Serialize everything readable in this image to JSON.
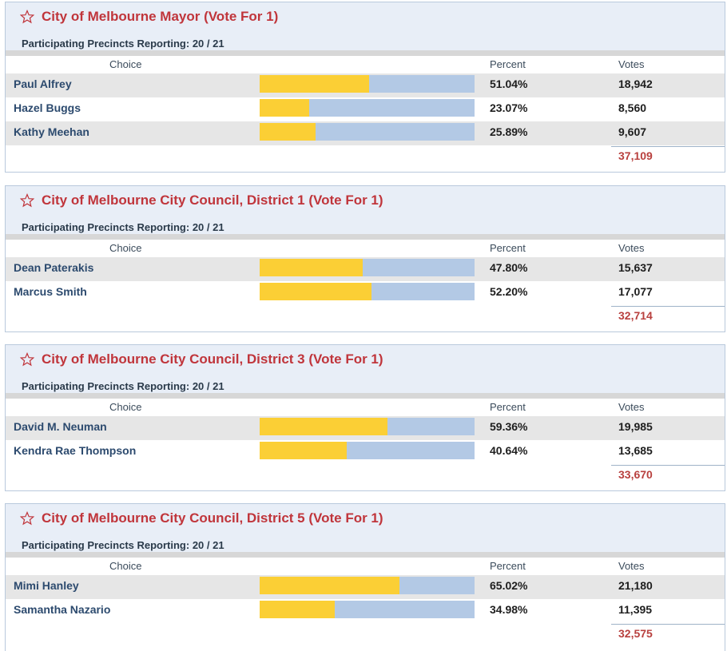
{
  "columns": {
    "choice": "Choice",
    "percent": "Percent",
    "votes": "Votes"
  },
  "colors": {
    "title": "#c0353b",
    "bar_fill": "#fbcf35",
    "bar_track": "#b3c9e5",
    "total": "#b8403e"
  },
  "races": [
    {
      "title": "City of Melbourne Mayor (Vote For 1)",
      "precincts": "Participating Precincts Reporting: 20 / 21",
      "candidates": [
        {
          "name": "Paul Alfrey",
          "percent": "51.04%",
          "votes": "18,942",
          "share": 0.5104
        },
        {
          "name": "Hazel Buggs",
          "percent": "23.07%",
          "votes": "8,560",
          "share": 0.2307
        },
        {
          "name": "Kathy Meehan",
          "percent": "25.89%",
          "votes": "9,607",
          "share": 0.2589
        }
      ],
      "total": "37,109"
    },
    {
      "title": "City of Melbourne City Council, District 1 (Vote For 1)",
      "precincts": "Participating Precincts Reporting: 20 / 21",
      "candidates": [
        {
          "name": "Dean Paterakis",
          "percent": "47.80%",
          "votes": "15,637",
          "share": 0.478
        },
        {
          "name": "Marcus Smith",
          "percent": "52.20%",
          "votes": "17,077",
          "share": 0.522
        }
      ],
      "total": "32,714"
    },
    {
      "title": "City of Melbourne City Council, District 3 (Vote For 1)",
      "precincts": "Participating Precincts Reporting: 20 / 21",
      "candidates": [
        {
          "name": "David M. Neuman",
          "percent": "59.36%",
          "votes": "19,985",
          "share": 0.5936
        },
        {
          "name": "Kendra Rae Thompson",
          "percent": "40.64%",
          "votes": "13,685",
          "share": 0.4064
        }
      ],
      "total": "33,670"
    },
    {
      "title": "City of Melbourne City Council, District 5 (Vote For 1)",
      "precincts": "Participating Precincts Reporting: 20 / 21",
      "candidates": [
        {
          "name": "Mimi Hanley",
          "percent": "65.02%",
          "votes": "21,180",
          "share": 0.6502
        },
        {
          "name": "Samantha Nazario",
          "percent": "34.98%",
          "votes": "11,395",
          "share": 0.3498
        }
      ],
      "total": "32,575"
    }
  ]
}
